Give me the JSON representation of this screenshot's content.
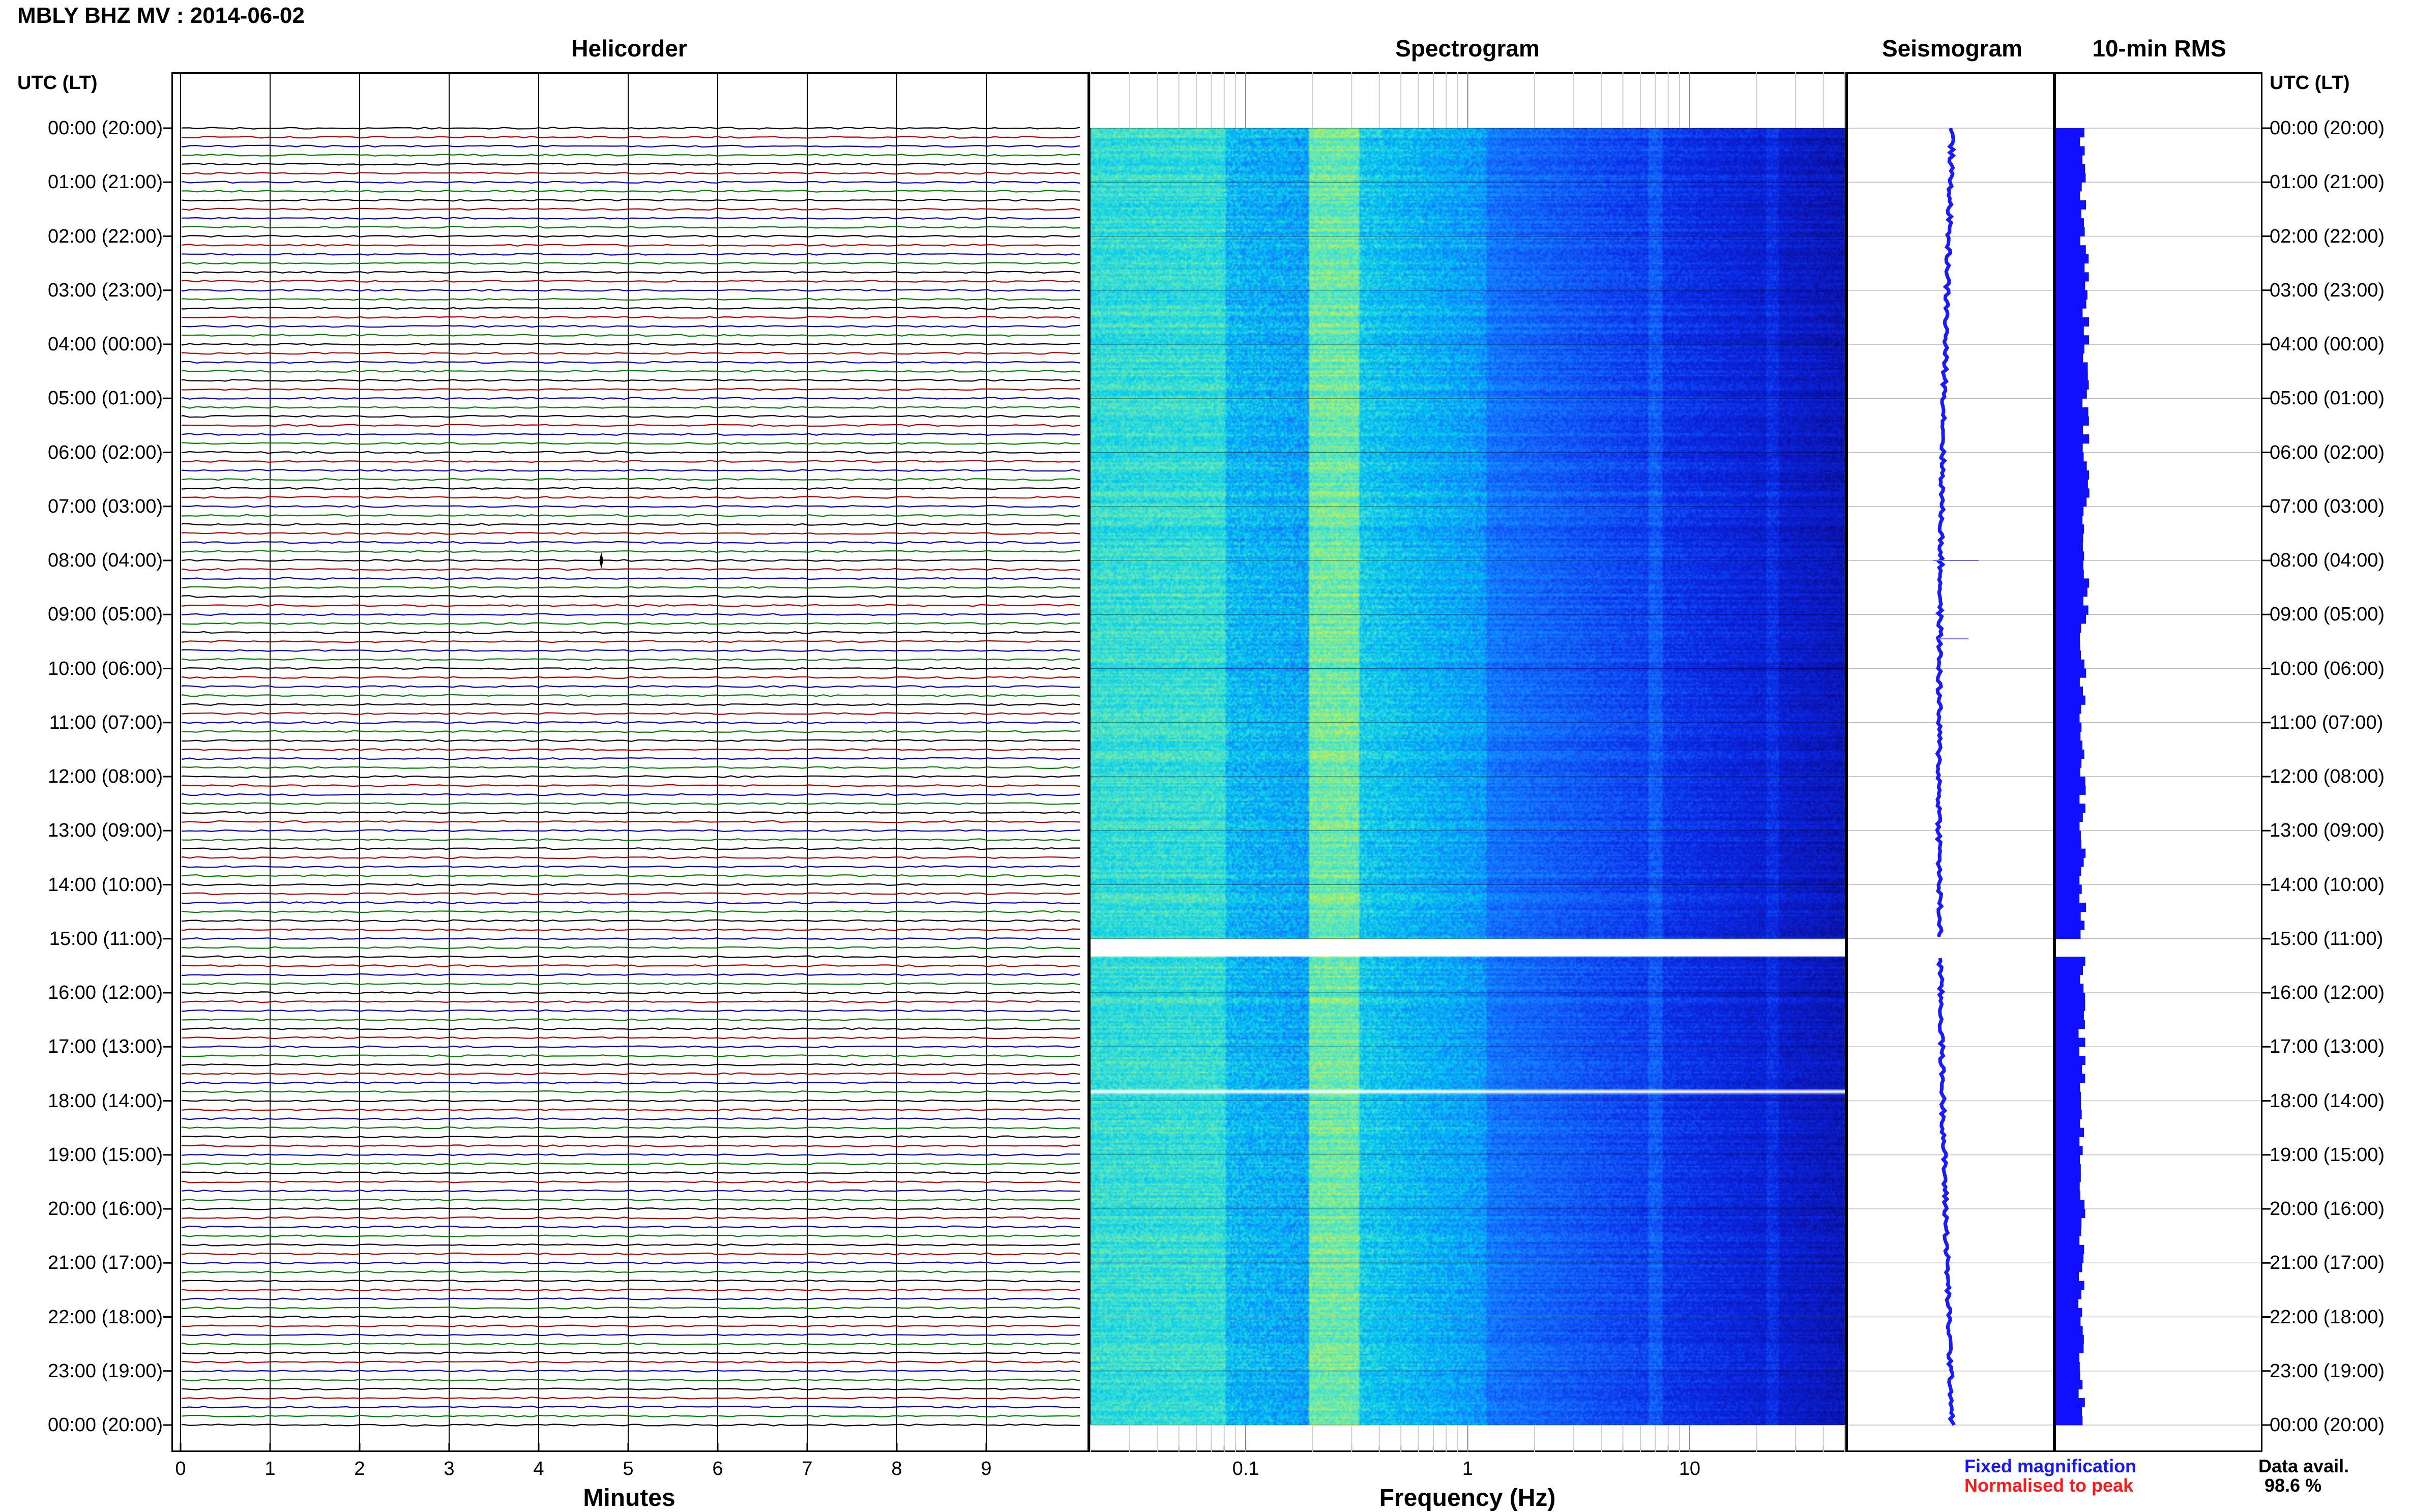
{
  "header": {
    "title": "MBLY BHZ MV : 2014-06-02",
    "utc_label_left": "UTC (LT)",
    "utc_label_right": "UTC (LT)"
  },
  "panels": {
    "helicorder": "Helicorder",
    "spectrogram": "Spectrogram",
    "seismogram": "Seismogram",
    "rms": "10-min RMS"
  },
  "time_labels": [
    "00:00 (20:00)",
    "01:00 (21:00)",
    "02:00 (22:00)",
    "03:00 (23:00)",
    "04:00 (00:00)",
    "05:00 (01:00)",
    "06:00 (02:00)",
    "07:00 (03:00)",
    "08:00 (04:00)",
    "09:00 (05:00)",
    "10:00 (06:00)",
    "11:00 (07:00)",
    "12:00 (08:00)",
    "13:00 (09:00)",
    "14:00 (10:00)",
    "15:00 (11:00)",
    "16:00 (12:00)",
    "17:00 (13:00)",
    "18:00 (14:00)",
    "19:00 (15:00)",
    "20:00 (16:00)",
    "21:00 (17:00)",
    "22:00 (18:00)",
    "23:00 (19:00)",
    "00:00 (20:00)"
  ],
  "helicorder_axis": {
    "title": "Minutes",
    "ticks": [
      "0",
      "1",
      "2",
      "3",
      "4",
      "5",
      "6",
      "7",
      "8",
      "9"
    ]
  },
  "spectrogram_axis": {
    "title": "Frequency (Hz)",
    "ticks": [
      "0.1",
      "1",
      "10"
    ]
  },
  "legend": {
    "fixed": "Fixed magnification",
    "normalised": "Normalised to peak",
    "fixed_color": "#1515ff",
    "normalised_color": "#ff1a1a"
  },
  "availability": {
    "label": "Data avail.",
    "value": "98.6 %"
  },
  "chart_data": {
    "type": "heatmap",
    "station": "MBLY",
    "channel": "BHZ",
    "network": "MV",
    "date": "2014-06-02",
    "helicorder": {
      "x_unit": "minutes",
      "xlim": [
        0,
        10
      ],
      "trace_colors": [
        "#000000",
        "#b00000",
        "#0000b0",
        "#008000"
      ],
      "lines_per_hour": 6,
      "hours": 24,
      "notable_events": [
        {
          "hour": 8,
          "minute": 4.7
        }
      ]
    },
    "spectrogram": {
      "x_scale": "log",
      "xlim": [
        0.02,
        50
      ],
      "dominant_band_hz": [
        0.18,
        0.3
      ],
      "data_gaps_utc": [
        "15:00-15:20",
        "17:50"
      ]
    },
    "seismogram": {
      "scale": "fixed magnification"
    },
    "rms": {
      "interval": "10-min"
    },
    "data_availability_percent": 98.6
  }
}
